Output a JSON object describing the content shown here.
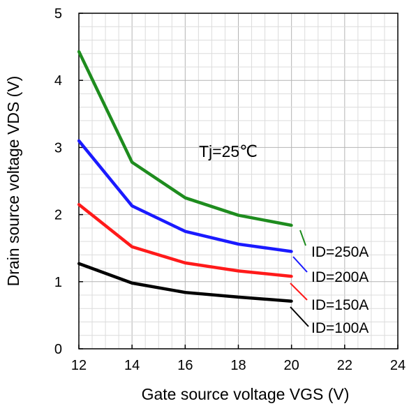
{
  "chart_data": {
    "type": "line",
    "xlabel": "Gate source voltage VGS (V)",
    "ylabel": "Drain source voltage VDS (V)",
    "xlim": [
      12,
      24
    ],
    "ylim": [
      0,
      5
    ],
    "xticks": [
      12,
      14,
      16,
      18,
      20,
      22,
      24
    ],
    "yticks": [
      0,
      1,
      2,
      3,
      4,
      5
    ],
    "grid": true,
    "annotation": "Tj=25℃",
    "series": [
      {
        "name": "ID=250A",
        "color": "#1e8c1e",
        "x": [
          12,
          14,
          16,
          18,
          20
        ],
        "y": [
          4.43,
          2.78,
          2.25,
          1.99,
          1.84
        ]
      },
      {
        "name": "ID=200A",
        "color": "#1a1aff",
        "x": [
          12,
          14,
          16,
          18,
          20
        ],
        "y": [
          3.1,
          2.13,
          1.75,
          1.56,
          1.45
        ]
      },
      {
        "name": "ID=150A",
        "color": "#ff1a1a",
        "x": [
          12,
          14,
          16,
          18,
          20
        ],
        "y": [
          2.15,
          1.52,
          1.28,
          1.16,
          1.08
        ]
      },
      {
        "name": "ID=100A",
        "color": "#000000",
        "x": [
          12,
          14,
          16,
          18,
          20
        ],
        "y": [
          1.27,
          0.98,
          0.84,
          0.77,
          0.71
        ]
      }
    ]
  }
}
